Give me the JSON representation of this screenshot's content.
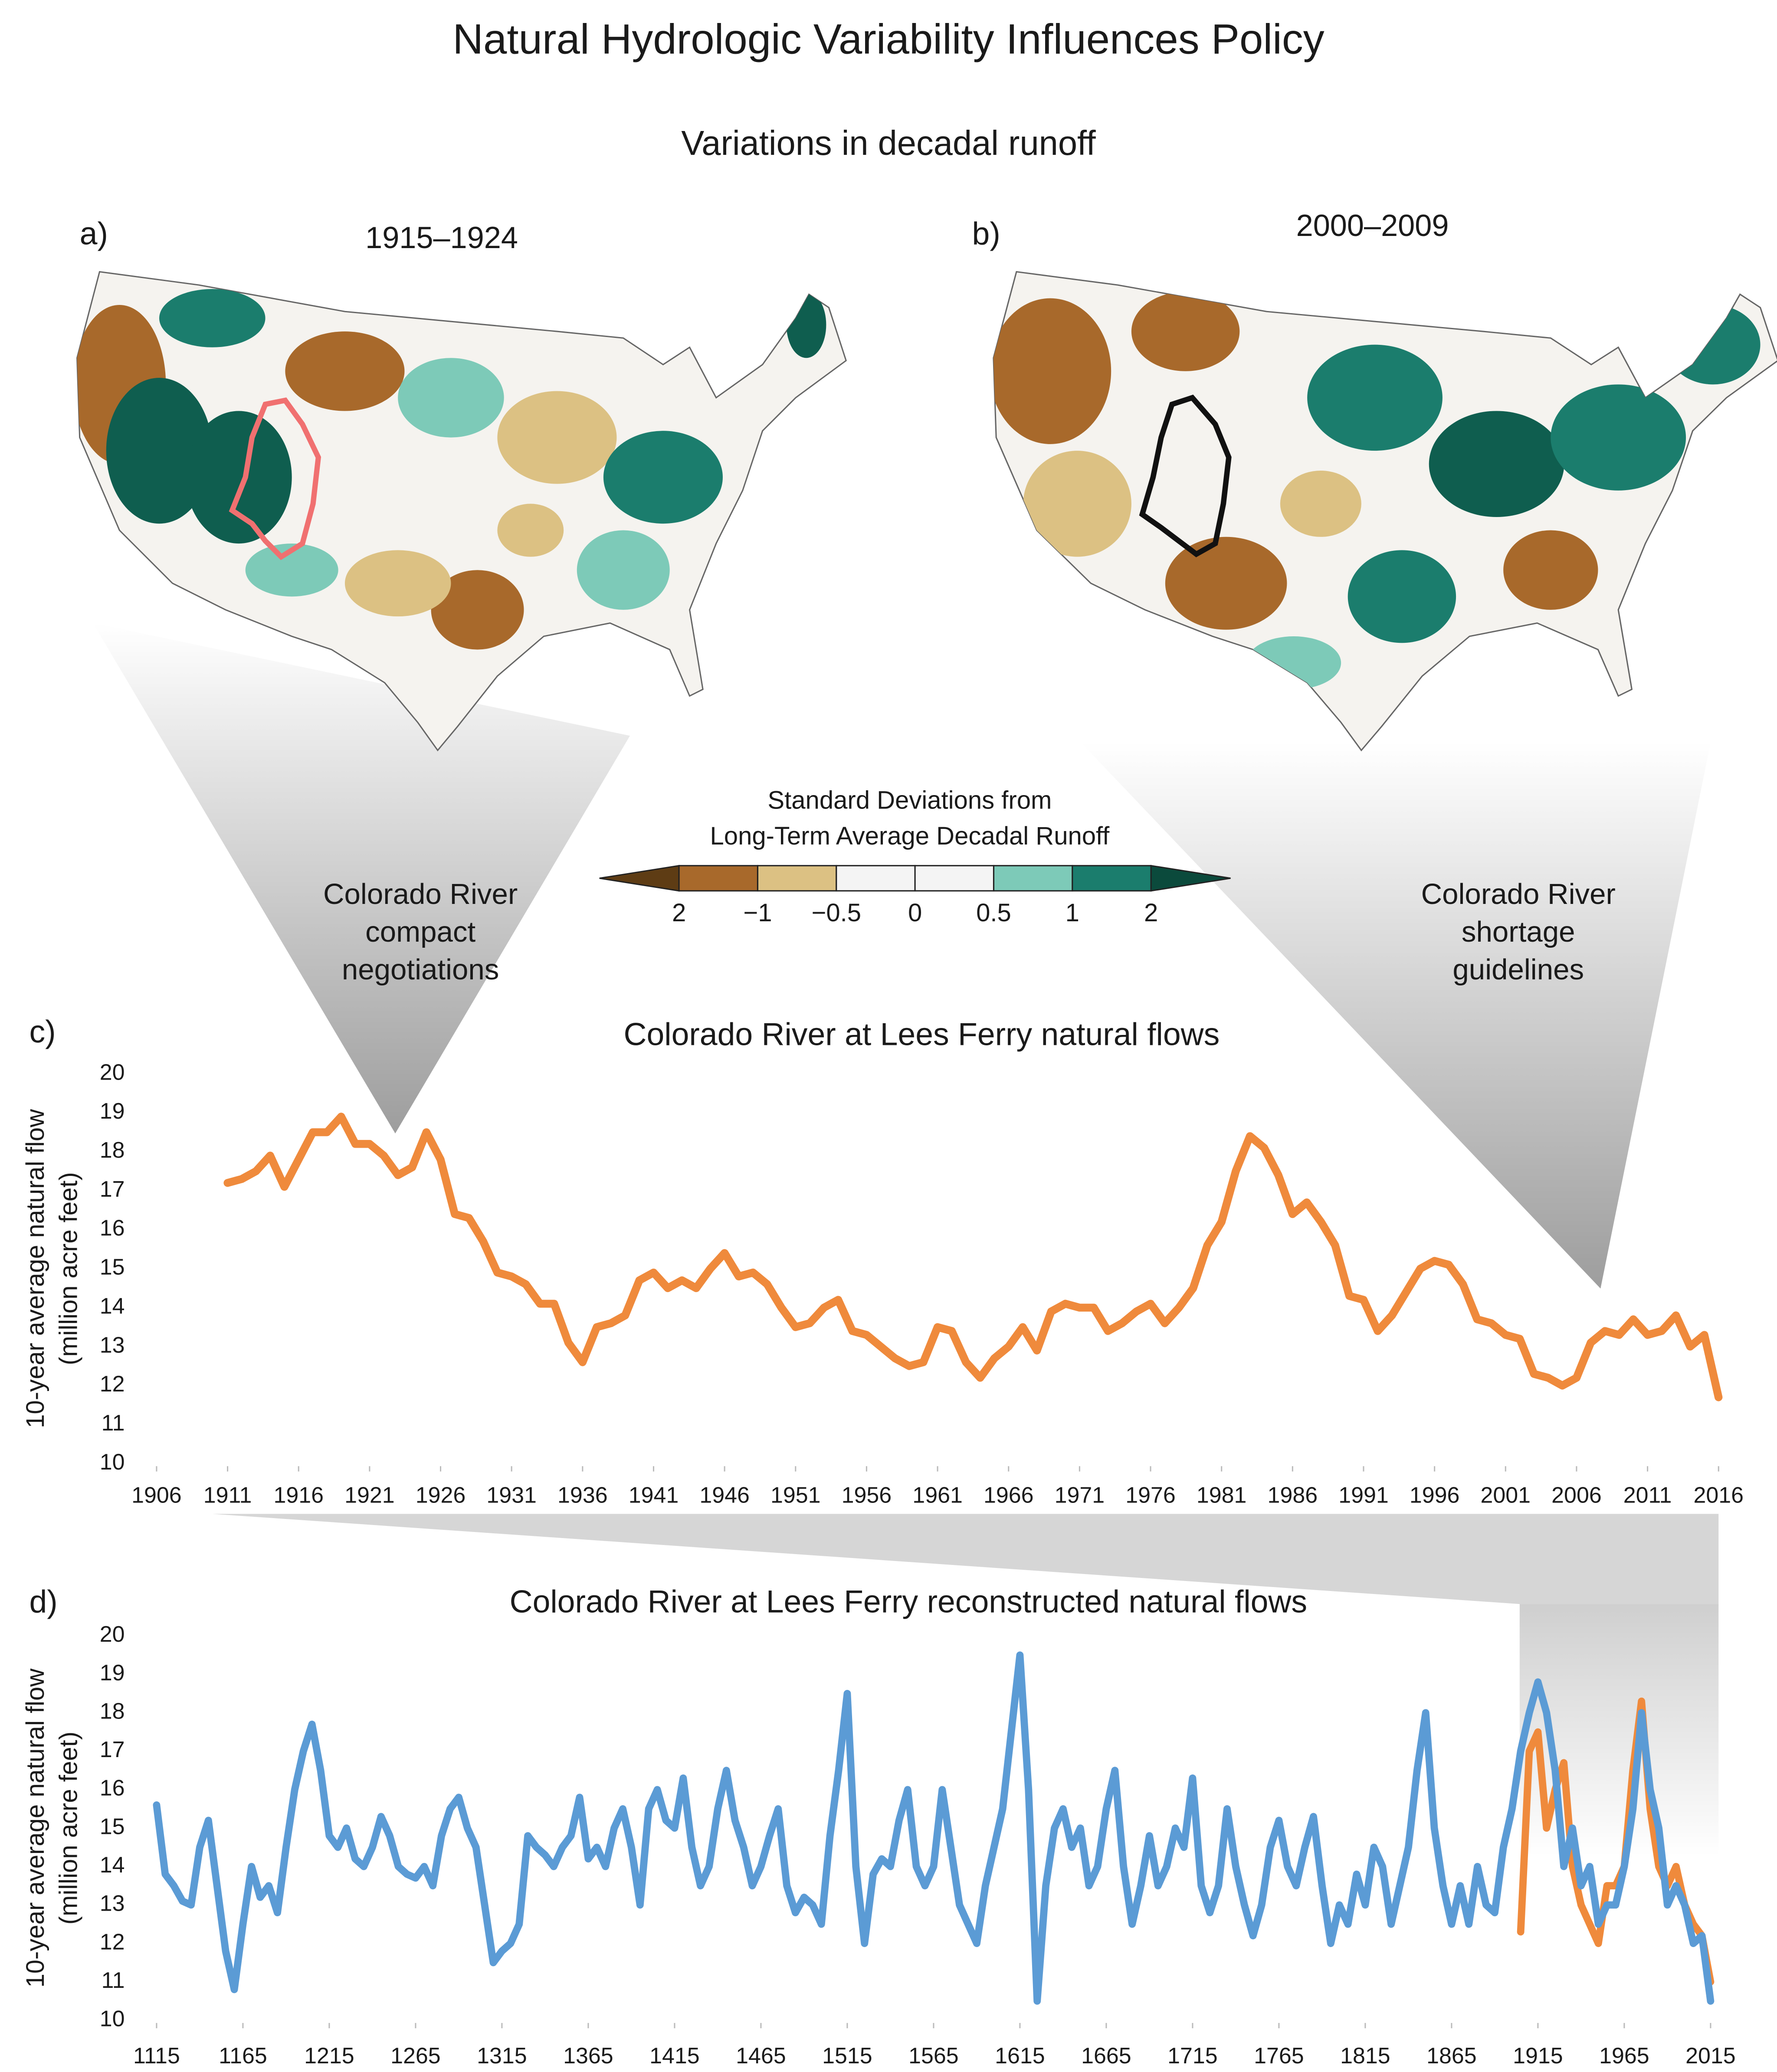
{
  "title": "Natural Hydrologic Variability Influences Policy",
  "subtitle": "Variations in decadal runoff",
  "maps": [
    {
      "label": "a)",
      "title": "1915–1924"
    },
    {
      "label": "b)",
      "title": "2000–2009"
    }
  ],
  "colorbar": {
    "title": [
      "Standard Deviations from",
      "Long-Term Average Decadal Runoff"
    ],
    "labels": [
      "2",
      "−1",
      "−0.5",
      "0",
      "0.5",
      "1",
      "2"
    ],
    "colors": [
      "#5e3c14",
      "#a8692b",
      "#dcc183",
      "#f4f4f4",
      "#f4f4f4",
      "#7dcab8",
      "#1b7d6d",
      "#0b4a3c"
    ]
  },
  "annotations": [
    [
      "Colorado River",
      "compact",
      "negotiations"
    ],
    [
      "Colorado River",
      "shortage",
      "guidelines"
    ]
  ],
  "chart_data": [
    {
      "type": "line",
      "panel_label": "c)",
      "title": "Colorado River at Lees Ferry natural flows",
      "ylabel": [
        "10-year average natural flow",
        "(million acre feet)"
      ],
      "x": [
        1911,
        1912,
        1913,
        1914,
        1915,
        1916,
        1917,
        1918,
        1919,
        1920,
        1921,
        1922,
        1923,
        1924,
        1925,
        1926,
        1927,
        1928,
        1929,
        1930,
        1931,
        1932,
        1933,
        1934,
        1935,
        1936,
        1937,
        1938,
        1939,
        1940,
        1941,
        1942,
        1943,
        1944,
        1945,
        1946,
        1947,
        1948,
        1949,
        1950,
        1951,
        1952,
        1953,
        1954,
        1955,
        1956,
        1957,
        1958,
        1959,
        1960,
        1961,
        1962,
        1963,
        1964,
        1965,
        1966,
        1967,
        1968,
        1969,
        1970,
        1971,
        1972,
        1973,
        1974,
        1975,
        1976,
        1977,
        1978,
        1979,
        1980,
        1981,
        1982,
        1983,
        1984,
        1985,
        1986,
        1987,
        1988,
        1989,
        1990,
        1991,
        1992,
        1993,
        1994,
        1995,
        1996,
        1997,
        1998,
        1999,
        2000,
        2001,
        2002,
        2003,
        2004,
        2005,
        2006,
        2007,
        2008,
        2009,
        2010,
        2011,
        2012,
        2013,
        2014,
        2015,
        2016
      ],
      "series": [
        {
          "color": "#ef8a3c",
          "values": [
            17.2,
            17.3,
            17.5,
            17.9,
            17.1,
            17.8,
            18.5,
            18.5,
            18.9,
            18.2,
            18.2,
            17.9,
            17.4,
            17.6,
            18.5,
            17.8,
            16.4,
            16.3,
            15.7,
            14.9,
            14.8,
            14.6,
            14.1,
            14.1,
            13.1,
            12.6,
            13.5,
            13.6,
            13.8,
            14.7,
            14.9,
            14.5,
            14.7,
            14.5,
            15.0,
            15.4,
            14.8,
            14.9,
            14.6,
            14.0,
            13.5,
            13.6,
            14.0,
            14.2,
            13.4,
            13.3,
            13.0,
            12.7,
            12.5,
            12.6,
            13.5,
            13.4,
            12.6,
            12.2,
            12.7,
            13.0,
            13.5,
            12.9,
            13.9,
            14.1,
            14.0,
            14.0,
            13.4,
            13.6,
            13.9,
            14.1,
            13.6,
            14.0,
            14.5,
            15.6,
            16.2,
            17.5,
            18.4,
            18.1,
            17.4,
            16.4,
            16.7,
            16.2,
            15.6,
            14.3,
            14.2,
            13.4,
            13.8,
            14.4,
            15.0,
            15.2,
            15.1,
            14.6,
            13.7,
            13.6,
            13.3,
            13.2,
            12.3,
            12.2,
            12.0,
            12.2,
            13.1,
            13.4,
            13.3,
            13.7,
            13.3,
            13.4,
            13.8,
            13.0,
            13.3,
            11.7
          ]
        }
      ],
      "xlim": [
        1906,
        2016
      ],
      "xticks": [
        1906,
        1911,
        1916,
        1921,
        1926,
        1931,
        1936,
        1941,
        1946,
        1951,
        1956,
        1961,
        1966,
        1971,
        1976,
        1981,
        1986,
        1991,
        1996,
        2001,
        2006,
        2011,
        2016
      ],
      "ylim": [
        10,
        20
      ],
      "yticks": [
        10,
        11,
        12,
        13,
        14,
        15,
        16,
        17,
        18,
        19,
        20
      ]
    },
    {
      "type": "line",
      "panel_label": "d)",
      "title": "Colorado River at Lees Ferry reconstructed natural flows",
      "ylabel": [
        "10-year average natural flow",
        "(million acre feet)"
      ],
      "series": [
        {
          "color": "#ef8a3c",
          "x": [
            1905,
            1910,
            1915,
            1920,
            1925,
            1930,
            1935,
            1940,
            1945,
            1950,
            1955,
            1960,
            1965,
            1970,
            1975,
            1980,
            1985,
            1990,
            1995,
            2000,
            2005,
            2010,
            2015
          ],
          "values": [
            12.3,
            17.0,
            17.5,
            15.0,
            16.0,
            16.7,
            14.0,
            13.0,
            12.5,
            12.0,
            13.5,
            13.5,
            14.0,
            16.5,
            18.3,
            15.5,
            14.0,
            13.5,
            14.0,
            13.0,
            12.5,
            12.2,
            11.0
          ]
        },
        {
          "color": "#5b9bd5",
          "x": [
            1115,
            1120,
            1125,
            1130,
            1135,
            1140,
            1145,
            1150,
            1155,
            1160,
            1165,
            1170,
            1175,
            1180,
            1185,
            1190,
            1195,
            1200,
            1205,
            1210,
            1215,
            1220,
            1225,
            1230,
            1235,
            1240,
            1245,
            1250,
            1255,
            1260,
            1265,
            1270,
            1275,
            1280,
            1285,
            1290,
            1295,
            1300,
            1305,
            1310,
            1315,
            1320,
            1325,
            1330,
            1335,
            1340,
            1345,
            1350,
            1355,
            1360,
            1365,
            1370,
            1375,
            1380,
            1385,
            1390,
            1395,
            1400,
            1405,
            1410,
            1415,
            1420,
            1425,
            1430,
            1435,
            1440,
            1445,
            1450,
            1455,
            1460,
            1465,
            1470,
            1475,
            1480,
            1485,
            1490,
            1495,
            1500,
            1505,
            1510,
            1515,
            1520,
            1525,
            1530,
            1535,
            1540,
            1545,
            1550,
            1555,
            1560,
            1565,
            1570,
            1575,
            1580,
            1585,
            1590,
            1595,
            1600,
            1605,
            1610,
            1615,
            1620,
            1625,
            1630,
            1635,
            1640,
            1645,
            1650,
            1655,
            1660,
            1665,
            1670,
            1675,
            1680,
            1685,
            1690,
            1695,
            1700,
            1705,
            1710,
            1715,
            1720,
            1725,
            1730,
            1735,
            1740,
            1745,
            1750,
            1755,
            1760,
            1765,
            1770,
            1775,
            1780,
            1785,
            1790,
            1795,
            1800,
            1805,
            1810,
            1815,
            1820,
            1825,
            1830,
            1835,
            1840,
            1845,
            1850,
            1855,
            1860,
            1865,
            1870,
            1875,
            1880,
            1885,
            1890,
            1895,
            1900,
            1905,
            1910,
            1915,
            1920,
            1925,
            1930,
            1935,
            1940,
            1945,
            1950,
            1955,
            1960,
            1965,
            1970,
            1975,
            1980,
            1985,
            1990,
            1995,
            2000,
            2005,
            2010,
            2015
          ],
          "values": [
            15.6,
            13.8,
            13.5,
            13.1,
            13.0,
            14.5,
            15.2,
            13.5,
            11.8,
            10.8,
            12.5,
            14.0,
            13.2,
            13.5,
            12.8,
            14.5,
            16.0,
            17.0,
            17.7,
            16.5,
            14.8,
            14.5,
            15.0,
            14.2,
            14.0,
            14.5,
            15.3,
            14.8,
            14.0,
            13.8,
            13.7,
            14.0,
            13.5,
            14.8,
            15.5,
            15.8,
            15.0,
            14.5,
            13.0,
            11.5,
            11.8,
            12.0,
            12.5,
            14.8,
            14.5,
            14.3,
            14.0,
            14.5,
            14.8,
            15.8,
            14.2,
            14.5,
            14.0,
            15.0,
            15.5,
            14.5,
            13.0,
            15.5,
            16.0,
            15.2,
            15.0,
            16.3,
            14.5,
            13.5,
            14.0,
            15.5,
            16.5,
            15.2,
            14.5,
            13.5,
            14.0,
            14.8,
            15.5,
            13.5,
            12.8,
            13.2,
            13.0,
            12.5,
            14.8,
            16.5,
            18.5,
            14.0,
            12.0,
            13.8,
            14.2,
            14.0,
            15.2,
            16.0,
            14.0,
            13.5,
            14.0,
            16.0,
            14.5,
            13.0,
            12.5,
            12.0,
            13.5,
            14.5,
            15.5,
            17.5,
            19.5,
            16.0,
            10.5,
            13.5,
            15.0,
            15.5,
            14.5,
            15.0,
            13.5,
            14.0,
            15.5,
            16.5,
            14.0,
            12.5,
            13.5,
            14.8,
            13.5,
            14.0,
            15.0,
            14.5,
            16.3,
            13.5,
            12.8,
            13.5,
            15.5,
            14.0,
            13.0,
            12.2,
            13.0,
            14.5,
            15.2,
            14.0,
            13.5,
            14.5,
            15.3,
            13.5,
            12.0,
            13.0,
            12.5,
            13.8,
            13.0,
            14.5,
            14.0,
            12.5,
            13.5,
            14.5,
            16.5,
            18.0,
            15.0,
            13.5,
            12.5,
            13.5,
            12.5,
            14.0,
            13.0,
            12.8,
            14.5,
            15.5,
            17.0,
            18.0,
            18.8,
            18.0,
            16.5,
            14.0,
            15.0,
            13.5,
            14.0,
            12.5,
            13.0,
            13.0,
            14.0,
            15.5,
            18.0,
            16.0,
            15.0,
            13.0,
            13.5,
            13.0,
            12.0,
            12.2,
            10.5
          ]
        }
      ],
      "xlim": [
        1115,
        2015
      ],
      "xticks": [
        1115,
        1165,
        1215,
        1265,
        1315,
        1365,
        1415,
        1465,
        1515,
        1565,
        1615,
        1665,
        1715,
        1765,
        1815,
        1865,
        1915,
        1965,
        2015
      ],
      "ylim": [
        10,
        20
      ],
      "yticks": [
        10,
        11,
        12,
        13,
        14,
        15,
        16,
        17,
        18,
        19,
        20
      ]
    }
  ]
}
